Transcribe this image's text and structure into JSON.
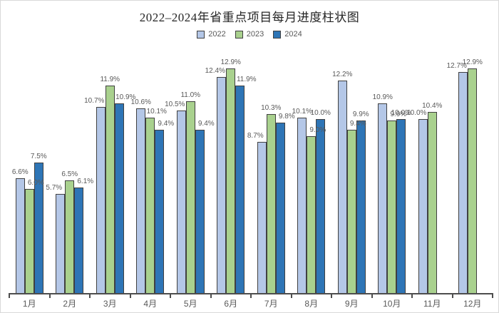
{
  "frame": {
    "background": "#ffffff",
    "border_color": "#d9d9d9"
  },
  "chart_data": {
    "type": "bar",
    "title": "2022–2024年省重点项目每月进度柱状图",
    "categories": [
      "1月",
      "2月",
      "3月",
      "4月",
      "5月",
      "6月",
      "7月",
      "8月",
      "9月",
      "10月",
      "11月",
      "12月"
    ],
    "series": [
      {
        "name": "2022",
        "color": "#b4c7e7",
        "values": [
          6.6,
          5.7,
          10.7,
          10.6,
          10.5,
          12.4,
          8.7,
          10.1,
          12.2,
          10.9,
          10.0,
          12.7
        ]
      },
      {
        "name": "2023",
        "color": "#a9d18e",
        "values": [
          6.0,
          6.5,
          11.9,
          10.1,
          11.0,
          12.9,
          10.3,
          9.0,
          9.4,
          9.9,
          10.4,
          12.9
        ]
      },
      {
        "name": "2024",
        "color": "#2e75b6",
        "values": [
          7.5,
          6.1,
          10.9,
          9.4,
          9.4,
          11.9,
          9.8,
          10.0,
          9.9,
          10.0,
          null,
          null
        ]
      }
    ],
    "value_suffix": "%",
    "ylim": [
      0,
      13.5
    ],
    "grid": false,
    "legend_position": "top",
    "axis_color": "#4d4d4d",
    "label_color": "#595959",
    "bar_border_color": "#404040",
    "xlabel": "",
    "ylabel": ""
  }
}
